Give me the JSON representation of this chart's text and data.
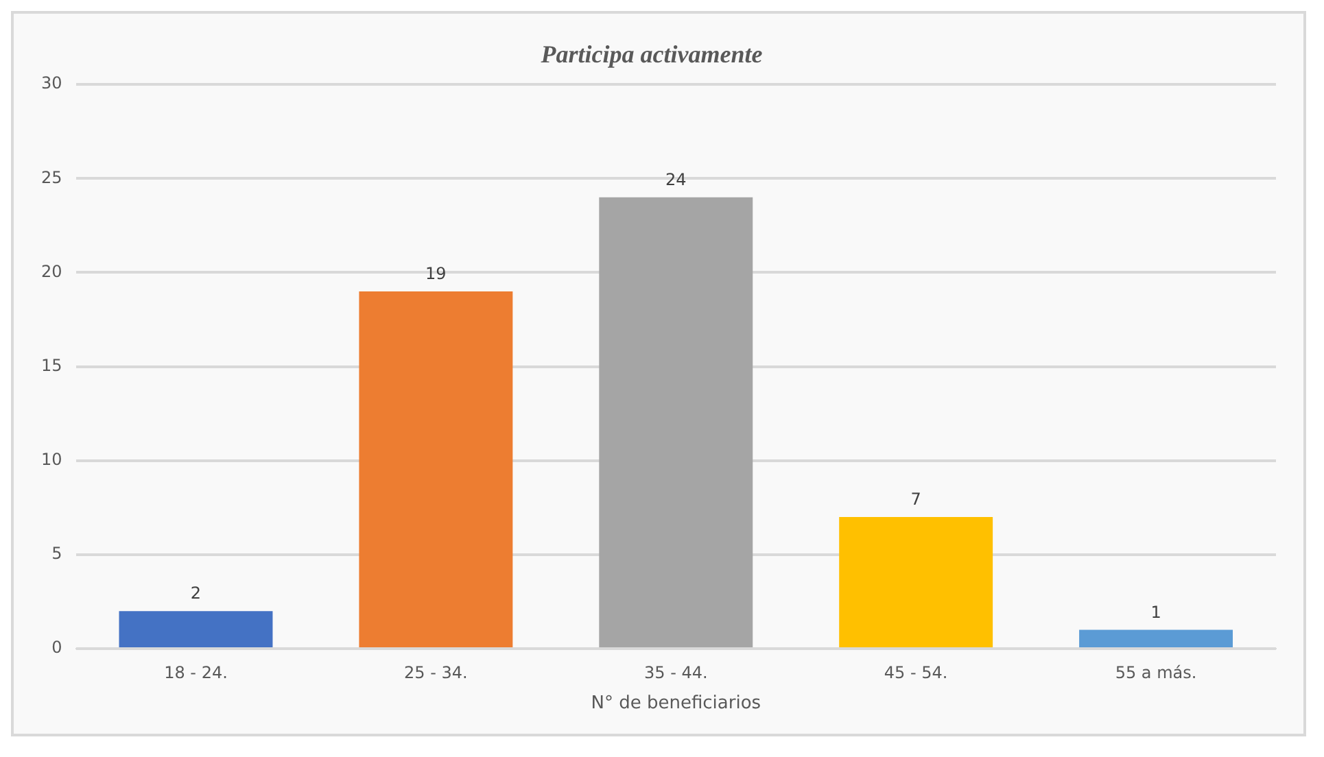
{
  "chart_data": {
    "type": "bar",
    "title": "Participa activamente",
    "xlabel": "N° de beneficiarios",
    "categories": [
      "18 - 24.",
      "25 - 34.",
      "35 - 44.",
      "45 - 54.",
      "55 a más."
    ],
    "values": [
      2,
      19,
      24,
      7,
      1
    ],
    "colors": [
      "#4472c4",
      "#ed7d31",
      "#a5a5a5",
      "#ffc000",
      "#5b9bd5"
    ],
    "ylim": [
      0,
      30
    ],
    "yticks": [
      0,
      5,
      10,
      15,
      20,
      25,
      30
    ],
    "grid": "y",
    "data_labels": true
  }
}
